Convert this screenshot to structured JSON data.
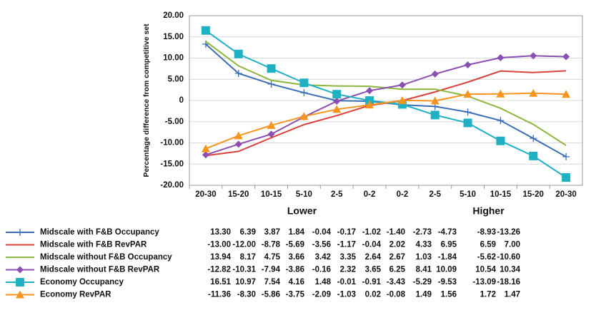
{
  "chart_data": {
    "type": "line",
    "y_label": "Percentage difference from competitive set",
    "categories": [
      "20-30",
      "15-20",
      "10-15",
      "5-10",
      "2-5",
      "0-2",
      "0-2",
      "2-5",
      "5-10",
      "10-15",
      "15-20",
      "20-30"
    ],
    "group_labels": [
      "Lower",
      "Higher"
    ],
    "ylim": [
      -20,
      20
    ],
    "yticks": [
      {
        "value": 20,
        "label": "20.00"
      },
      {
        "value": 15,
        "label": "15.00"
      },
      {
        "value": 10,
        "label": "10.00"
      },
      {
        "value": 5,
        "label": "5.00"
      },
      0,
      {
        "value": -5,
        "label": "-5.00"
      },
      {
        "value": -10,
        "label": "-10.00"
      },
      {
        "value": -15,
        "label": "-15.00"
      },
      {
        "value": -20,
        "label": "-20.00"
      }
    ],
    "grid": true,
    "series": [
      {
        "name": "Midscale with F&B Occupancy",
        "color": "#3a6fb5",
        "marker": "plus",
        "values": [
          13.3,
          6.39,
          3.87,
          1.84,
          -0.04,
          -0.17,
          -1.02,
          -1.4,
          -2.73,
          -4.73,
          -8.93,
          -13.26
        ],
        "value_labels": [
          "13.30",
          "6.39",
          "3.87",
          "1.84",
          "-0.04",
          "-0.17",
          "-1.02",
          "-1.40",
          "-2.73",
          "-4.73",
          "-8.93",
          "-13.26"
        ]
      },
      {
        "name": "Midscale with F&B RevPAR",
        "color": "#d9413a",
        "marker": "none",
        "values": [
          -13.0,
          -12.0,
          -8.78,
          -5.69,
          -3.56,
          -1.17,
          -0.04,
          2.02,
          4.33,
          6.95,
          6.59,
          7.0
        ],
        "value_labels": [
          "-13.00",
          "-12.00",
          "-8.78",
          "-5.69",
          "-3.56",
          "-1.17",
          "-0.04",
          "2.02",
          "4.33",
          "6.95",
          "6.59",
          "7.00"
        ]
      },
      {
        "name": "Midscale without F&B Occupancy",
        "color": "#8db63c",
        "marker": "none",
        "values": [
          13.94,
          8.17,
          4.75,
          3.66,
          3.42,
          3.35,
          2.64,
          2.67,
          1.03,
          -1.84,
          -5.62,
          -10.6
        ],
        "value_labels": [
          "13.94",
          "8.17",
          "4.75",
          "3.66",
          "3.42",
          "3.35",
          "2.64",
          "2.67",
          "1.03",
          "-1.84",
          "-5.62",
          "-10.60"
        ]
      },
      {
        "name": "Midscale without F&B RevPAR",
        "color": "#8a4fb0",
        "marker": "diamond",
        "values": [
          -12.82,
          -10.31,
          -7.94,
          -3.86,
          -0.16,
          2.32,
          3.65,
          6.25,
          8.41,
          10.09,
          10.54,
          10.34
        ],
        "value_labels": [
          "-12.82",
          "-10.31",
          "-7.94",
          "-3.86",
          "-0.16",
          "2.32",
          "3.65",
          "6.25",
          "8.41",
          "10.09",
          "10.54",
          "10.34"
        ]
      },
      {
        "name": "Economy Occupancy",
        "color": "#1fb0c4",
        "marker": "square",
        "values": [
          16.51,
          10.97,
          7.54,
          4.16,
          1.48,
          -0.01,
          -0.91,
          -3.43,
          -5.29,
          -9.53,
          -13.09,
          -18.16
        ],
        "value_labels": [
          "16.51",
          "10.97",
          "7.54",
          "4.16",
          "1.48",
          "-0.01",
          "-0.91",
          "-3.43",
          "-5.29",
          "-9.53",
          "-13.09",
          "-18.16"
        ]
      },
      {
        "name": "Economy RevPAR",
        "color": "#f7941d",
        "marker": "triangle",
        "values": [
          -11.36,
          -8.3,
          -5.86,
          -3.75,
          -2.09,
          -1.03,
          0.02,
          -0.08,
          1.49,
          1.56,
          1.72,
          1.47
        ],
        "value_labels": [
          "-11.36",
          "-8.30",
          "-5.86",
          "-3.75",
          "-2.09",
          "-1.03",
          "0.02",
          "-0.08",
          "1.49",
          "1.56",
          "1.72",
          "1.47"
        ]
      }
    ]
  }
}
